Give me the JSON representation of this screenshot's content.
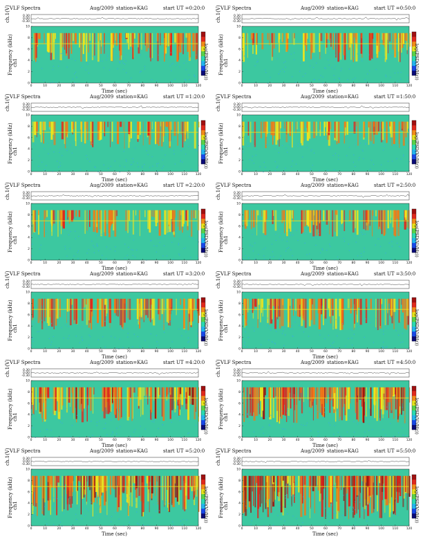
{
  "colors": {
    "spectrogram_background": "#3cc8a0",
    "spectrogram_activity": [
      "#f2e41a",
      "#f07a18",
      "#e0261c",
      "#9a1410"
    ],
    "spectrogram_quiet": "#36a8ee",
    "colorbar": [
      "#0a0a78",
      "#1848e8",
      "#22b4ee",
      "#2ad9b0",
      "#58d048",
      "#e8e41a",
      "#f08a18",
      "#e0281c",
      "#a01010"
    ]
  },
  "panel_text": {
    "title_left": "VLF Spectra",
    "date": "Aug/2009",
    "station": "station=KAG",
    "channel_label": "ch.1(V)",
    "freq_label": "Frequency (kHz)",
    "freq_label_alt": "ch1",
    "xlabel": "Time (sec)",
    "colorbar_label": "log(PSD(V²/Hz))"
  },
  "panels": [
    {
      "ut": "start UT =0:20:0"
    },
    {
      "ut": "start UT =0:50:0"
    },
    {
      "ut": "start UT =1:20:0"
    },
    {
      "ut": "start UT =1:50:0"
    },
    {
      "ut": "start UT =2:20:0"
    },
    {
      "ut": "start UT =2:50:0"
    },
    {
      "ut": "start UT =3:20:0"
    },
    {
      "ut": "start UT =3:50:0"
    },
    {
      "ut": "start UT =4:20:0"
    },
    {
      "ut": "start UT =4:50:0"
    },
    {
      "ut": "start UT =5:20:0"
    },
    {
      "ut": "start UT =5:50:0"
    }
  ],
  "chart_data": {
    "type": "heatmap",
    "title": "VLF Spectra   Aug/2009   station=KAG",
    "xlabel": "Time (sec)",
    "ylabel": "Frequency (kHz)",
    "xlim": [
      0,
      120
    ],
    "ylim": [
      0,
      10
    ],
    "x_ticks": [
      0,
      10,
      20,
      30,
      40,
      50,
      60,
      70,
      80,
      90,
      100,
      110,
      120
    ],
    "y_ticks": [
      0,
      2,
      4,
      6,
      8,
      10
    ],
    "waveform_ylabel": "ch.1(V)",
    "waveform_yticks": [
      "0.30",
      "0.00",
      "-0.30"
    ],
    "colorbar_label": "log(PSD(V²/Hz))",
    "grid": false,
    "panels": [
      {
        "start_ut": "0:20:0",
        "activity": 0.38
      },
      {
        "start_ut": "0:50:0",
        "activity": 0.36
      },
      {
        "start_ut": "1:20:0",
        "activity": 0.3
      },
      {
        "start_ut": "1:50:0",
        "activity": 0.28
      },
      {
        "start_ut": "2:20:0",
        "activity": 0.3
      },
      {
        "start_ut": "2:50:0",
        "activity": 0.3
      },
      {
        "start_ut": "3:20:0",
        "activity": 0.45
      },
      {
        "start_ut": "3:50:0",
        "activity": 0.45
      },
      {
        "start_ut": "4:20:0",
        "activity": 0.58
      },
      {
        "start_ut": "4:50:0",
        "activity": 0.62
      },
      {
        "start_ut": "5:20:0",
        "activity": 0.8
      },
      {
        "start_ut": "5:50:0",
        "activity": 0.88
      }
    ]
  }
}
